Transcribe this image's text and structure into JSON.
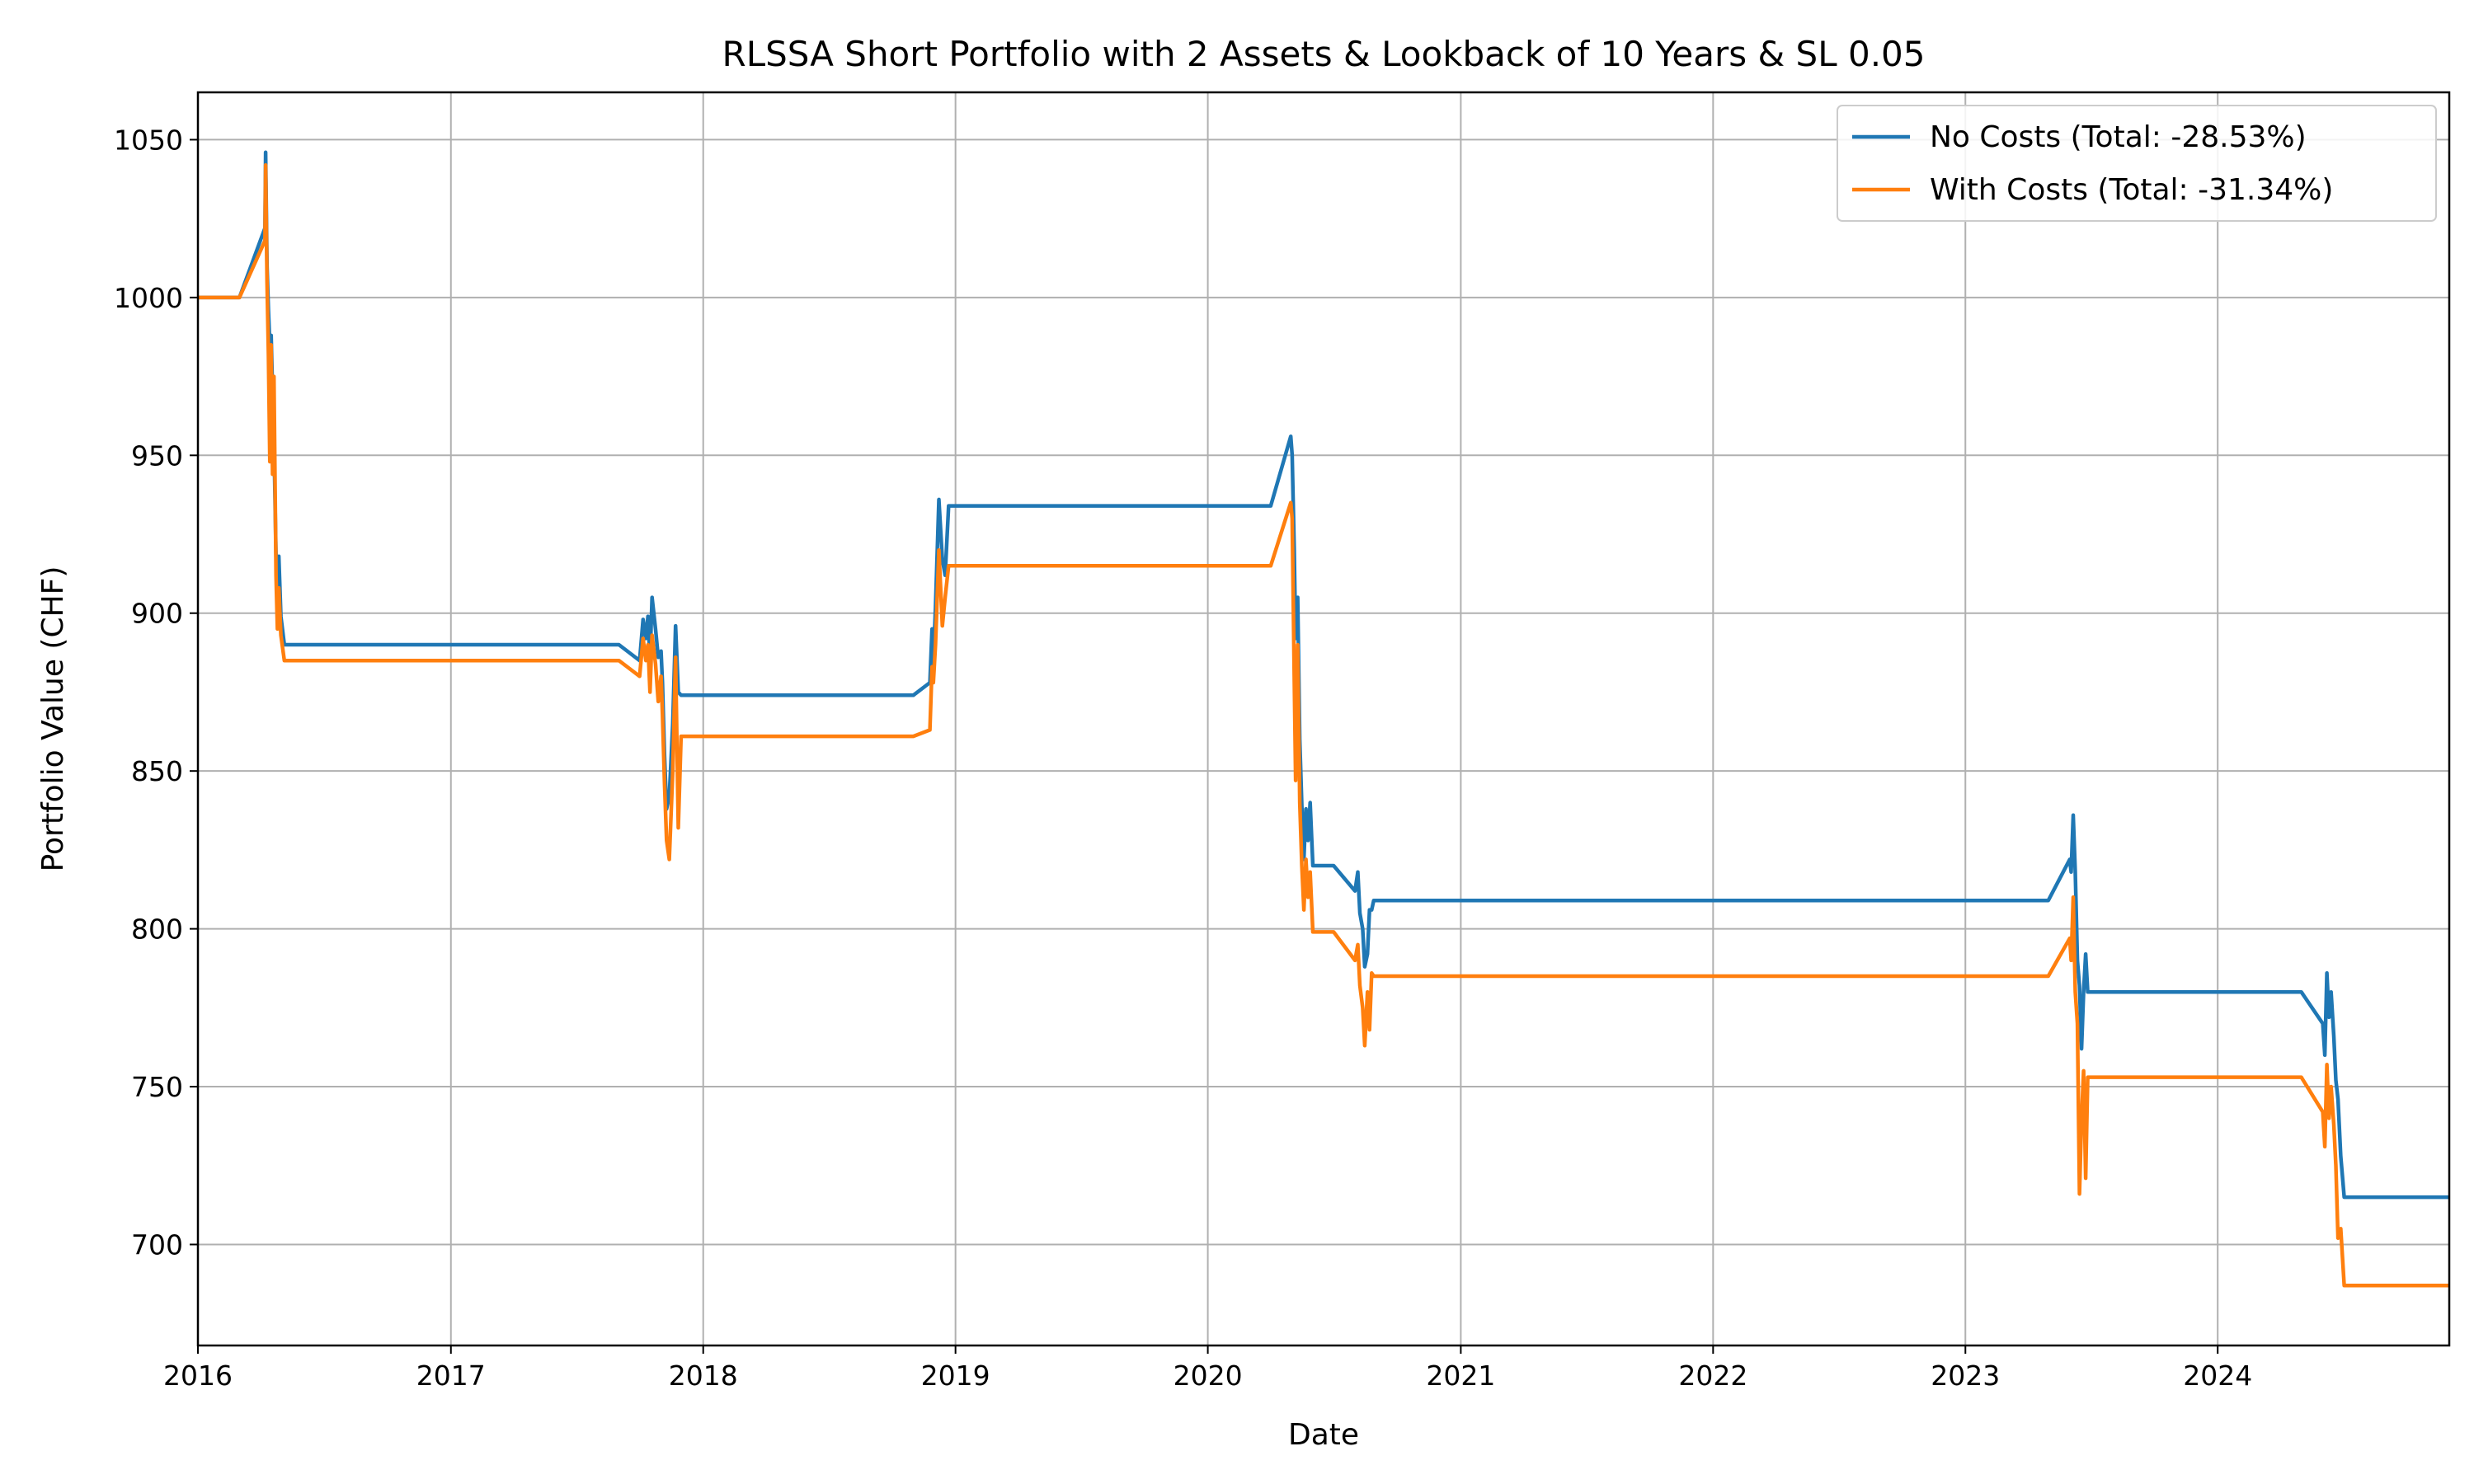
{
  "chart_data": {
    "type": "line",
    "title": "RLSSA Short Portfolio with 2 Assets & Lookback of 10 Years & SL 0.05",
    "xlabel": "Date",
    "ylabel": "Portfolio Value (CHF)",
    "xlim": [
      "2016-01-01",
      "2024-12-01"
    ],
    "ylim": [
      668,
      1065
    ],
    "x_ticks": [
      {
        "value": "2016-01-01",
        "label": "2016"
      },
      {
        "value": "2017-01-01",
        "label": "2017"
      },
      {
        "value": "2018-01-01",
        "label": "2018"
      },
      {
        "value": "2019-01-01",
        "label": "2019"
      },
      {
        "value": "2020-01-01",
        "label": "2020"
      },
      {
        "value": "2021-01-01",
        "label": "2021"
      },
      {
        "value": "2022-01-01",
        "label": "2022"
      },
      {
        "value": "2023-01-01",
        "label": "2023"
      },
      {
        "value": "2024-01-01",
        "label": "2024"
      }
    ],
    "y_ticks": [
      {
        "value": 700,
        "label": "700"
      },
      {
        "value": 750,
        "label": "750"
      },
      {
        "value": 800,
        "label": "800"
      },
      {
        "value": 850,
        "label": "850"
      },
      {
        "value": 900,
        "label": "900"
      },
      {
        "value": 950,
        "label": "950"
      },
      {
        "value": 1000,
        "label": "1000"
      },
      {
        "value": 1050,
        "label": "1050"
      }
    ],
    "grid": true,
    "legend_position": "top-right",
    "series": [
      {
        "name": "No Costs (Total: -28.53%)",
        "color": "#1f77b4",
        "points": [
          [
            "2016-01-01",
            1000
          ],
          [
            "2016-03-01",
            1000
          ],
          [
            "2016-04-07",
            1022
          ],
          [
            "2016-04-08",
            1046
          ],
          [
            "2016-04-10",
            1010
          ],
          [
            "2016-04-12",
            996
          ],
          [
            "2016-04-14",
            985
          ],
          [
            "2016-04-16",
            988
          ],
          [
            "2016-04-18",
            970
          ],
          [
            "2016-04-20",
            955
          ],
          [
            "2016-04-23",
            918
          ],
          [
            "2016-04-25",
            905
          ],
          [
            "2016-04-27",
            918
          ],
          [
            "2016-04-30",
            899
          ],
          [
            "2016-05-05",
            890
          ],
          [
            "2017-09-01",
            890
          ],
          [
            "2017-10-01",
            885
          ],
          [
            "2017-10-06",
            898
          ],
          [
            "2017-10-10",
            892
          ],
          [
            "2017-10-13",
            899
          ],
          [
            "2017-10-16",
            885
          ],
          [
            "2017-10-19",
            905
          ],
          [
            "2017-10-24",
            895
          ],
          [
            "2017-10-28",
            886
          ],
          [
            "2017-11-01",
            888
          ],
          [
            "2017-11-03",
            878
          ],
          [
            "2017-11-06",
            855
          ],
          [
            "2017-11-09",
            838
          ],
          [
            "2017-11-13",
            842
          ],
          [
            "2017-11-18",
            865
          ],
          [
            "2017-11-22",
            896
          ],
          [
            "2017-11-26",
            875
          ],
          [
            "2017-11-30",
            874
          ],
          [
            "2018-11-01",
            874
          ],
          [
            "2018-11-25",
            878
          ],
          [
            "2018-11-28",
            895
          ],
          [
            "2018-11-30",
            884
          ],
          [
            "2018-12-03",
            902
          ],
          [
            "2018-12-08",
            936
          ],
          [
            "2018-12-13",
            917
          ],
          [
            "2018-12-17",
            912
          ],
          [
            "2018-12-22",
            934
          ],
          [
            "2018-12-28",
            934
          ],
          [
            "2020-04-01",
            934
          ],
          [
            "2020-04-30",
            956
          ],
          [
            "2020-05-02",
            950
          ],
          [
            "2020-05-05",
            920
          ],
          [
            "2020-05-07",
            892
          ],
          [
            "2020-05-10",
            905
          ],
          [
            "2020-05-13",
            860
          ],
          [
            "2020-05-16",
            839
          ],
          [
            "2020-05-19",
            822
          ],
          [
            "2020-05-22",
            838
          ],
          [
            "2020-05-25",
            828
          ],
          [
            "2020-05-28",
            840
          ],
          [
            "2020-06-01",
            820
          ],
          [
            "2020-07-01",
            820
          ],
          [
            "2020-08-01",
            812
          ],
          [
            "2020-08-05",
            818
          ],
          [
            "2020-08-08",
            805
          ],
          [
            "2020-08-12",
            800
          ],
          [
            "2020-08-15",
            788
          ],
          [
            "2020-08-19",
            792
          ],
          [
            "2020-08-22",
            806
          ],
          [
            "2020-08-25",
            806
          ],
          [
            "2020-08-28",
            809
          ],
          [
            "2023-05-01",
            809
          ],
          [
            "2023-06-01",
            822
          ],
          [
            "2023-06-03",
            818
          ],
          [
            "2023-06-06",
            836
          ],
          [
            "2023-06-09",
            818
          ],
          [
            "2023-06-12",
            790
          ],
          [
            "2023-06-15",
            782
          ],
          [
            "2023-06-18",
            762
          ],
          [
            "2023-06-21",
            780
          ],
          [
            "2023-06-24",
            792
          ],
          [
            "2023-06-27",
            780
          ],
          [
            "2024-05-01",
            780
          ],
          [
            "2024-06-01",
            770
          ],
          [
            "2024-06-04",
            760
          ],
          [
            "2024-06-07",
            786
          ],
          [
            "2024-06-10",
            772
          ],
          [
            "2024-06-13",
            780
          ],
          [
            "2024-06-17",
            766
          ],
          [
            "2024-06-20",
            752
          ],
          [
            "2024-06-23",
            746
          ],
          [
            "2024-06-27",
            728
          ],
          [
            "2024-07-02",
            715
          ],
          [
            "2024-12-01",
            715
          ]
        ]
      },
      {
        "name": "With Costs (Total: -31.34%)",
        "color": "#ff7f0e",
        "points": [
          [
            "2016-01-01",
            1000
          ],
          [
            "2016-03-01",
            1000
          ],
          [
            "2016-04-07",
            1018
          ],
          [
            "2016-04-08",
            1042
          ],
          [
            "2016-04-10",
            1005
          ],
          [
            "2016-04-12",
            982
          ],
          [
            "2016-04-14",
            948
          ],
          [
            "2016-04-16",
            985
          ],
          [
            "2016-04-18",
            944
          ],
          [
            "2016-04-20",
            975
          ],
          [
            "2016-04-23",
            912
          ],
          [
            "2016-04-25",
            895
          ],
          [
            "2016-04-27",
            908
          ],
          [
            "2016-04-30",
            893
          ],
          [
            "2016-05-05",
            885
          ],
          [
            "2017-09-01",
            885
          ],
          [
            "2017-10-01",
            880
          ],
          [
            "2017-10-06",
            892
          ],
          [
            "2017-10-10",
            885
          ],
          [
            "2017-10-13",
            890
          ],
          [
            "2017-10-16",
            875
          ],
          [
            "2017-10-19",
            893
          ],
          [
            "2017-10-24",
            884
          ],
          [
            "2017-10-28",
            872
          ],
          [
            "2017-11-01",
            880
          ],
          [
            "2017-11-03",
            868
          ],
          [
            "2017-11-06",
            846
          ],
          [
            "2017-11-09",
            828
          ],
          [
            "2017-11-13",
            822
          ],
          [
            "2017-11-18",
            850
          ],
          [
            "2017-11-22",
            886
          ],
          [
            "2017-11-26",
            832
          ],
          [
            "2017-11-30",
            861
          ],
          [
            "2018-11-01",
            861
          ],
          [
            "2018-11-25",
            863
          ],
          [
            "2018-11-28",
            883
          ],
          [
            "2018-11-30",
            878
          ],
          [
            "2018-12-03",
            890
          ],
          [
            "2018-12-08",
            920
          ],
          [
            "2018-12-13",
            896
          ],
          [
            "2018-12-17",
            905
          ],
          [
            "2018-12-22",
            915
          ],
          [
            "2018-12-28",
            915
          ],
          [
            "2020-04-01",
            915
          ],
          [
            "2020-04-30",
            935
          ],
          [
            "2020-05-02",
            930
          ],
          [
            "2020-05-05",
            880
          ],
          [
            "2020-05-07",
            847
          ],
          [
            "2020-05-10",
            890
          ],
          [
            "2020-05-13",
            840
          ],
          [
            "2020-05-16",
            820
          ],
          [
            "2020-05-19",
            806
          ],
          [
            "2020-05-22",
            822
          ],
          [
            "2020-05-25",
            810
          ],
          [
            "2020-05-28",
            818
          ],
          [
            "2020-06-01",
            799
          ],
          [
            "2020-07-01",
            799
          ],
          [
            "2020-08-01",
            790
          ],
          [
            "2020-08-05",
            795
          ],
          [
            "2020-08-08",
            782
          ],
          [
            "2020-08-12",
            775
          ],
          [
            "2020-08-15",
            763
          ],
          [
            "2020-08-19",
            780
          ],
          [
            "2020-08-22",
            768
          ],
          [
            "2020-08-25",
            786
          ],
          [
            "2020-08-28",
            785
          ],
          [
            "2023-05-01",
            785
          ],
          [
            "2023-06-01",
            797
          ],
          [
            "2023-06-03",
            790
          ],
          [
            "2023-06-06",
            810
          ],
          [
            "2023-06-09",
            780
          ],
          [
            "2023-06-12",
            770
          ],
          [
            "2023-06-15",
            716
          ],
          [
            "2023-06-18",
            740
          ],
          [
            "2023-06-21",
            755
          ],
          [
            "2023-06-24",
            721
          ],
          [
            "2023-06-27",
            753
          ],
          [
            "2024-05-01",
            753
          ],
          [
            "2024-06-01",
            742
          ],
          [
            "2024-06-04",
            731
          ],
          [
            "2024-06-07",
            757
          ],
          [
            "2024-06-10",
            740
          ],
          [
            "2024-06-13",
            750
          ],
          [
            "2024-06-17",
            738
          ],
          [
            "2024-06-20",
            725
          ],
          [
            "2024-06-23",
            702
          ],
          [
            "2024-06-27",
            705
          ],
          [
            "2024-07-02",
            687
          ],
          [
            "2024-12-01",
            687
          ]
        ]
      }
    ]
  }
}
